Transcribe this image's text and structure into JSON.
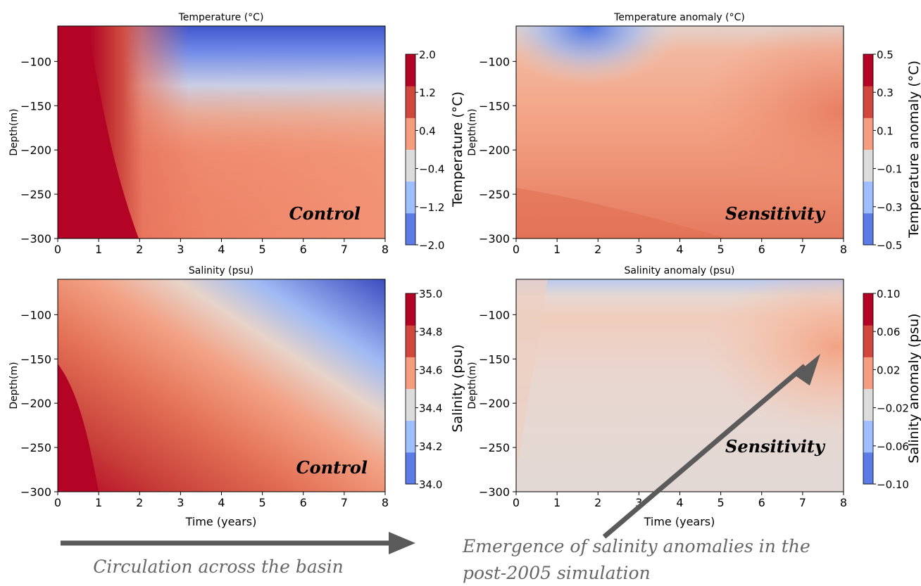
{
  "chart_data": [
    {
      "type": "heatmap",
      "title": "Temperature (°C)",
      "xlabel": "",
      "ylabel": "Depth(m)",
      "xlim": [
        0,
        8
      ],
      "ylim": [
        -300,
        -60
      ],
      "xticks": [
        "0",
        "1",
        "2",
        "3",
        "4",
        "5",
        "6",
        "7",
        "8"
      ],
      "yticks": [
        "−100",
        "−150",
        "−200",
        "−250",
        "−300"
      ],
      "annotation": "Control",
      "colorbar": {
        "label": "Temperature (°C)",
        "ticks": [
          "2.0",
          "1.2",
          "0.4",
          "−0.4",
          "−1.2",
          "−2.0"
        ],
        "range": [
          -2.0,
          2.0
        ]
      }
    },
    {
      "type": "heatmap",
      "title": "Temperature anomaly (°C)",
      "xlabel": "",
      "ylabel": "Depth(m)",
      "xlim": [
        0,
        8
      ],
      "ylim": [
        -300,
        -60
      ],
      "xticks": [
        "0",
        "1",
        "2",
        "3",
        "4",
        "5",
        "6",
        "7",
        "8"
      ],
      "yticks": [
        "−100",
        "−150",
        "−200",
        "−250",
        "−300"
      ],
      "annotation": "Sensitivity",
      "colorbar": {
        "label": "Temperature anomaly (°C)",
        "ticks": [
          "0.5",
          "0.3",
          "0.1",
          "−0.1",
          "−0.3",
          "−0.5"
        ],
        "range": [
          -0.5,
          0.5
        ]
      }
    },
    {
      "type": "heatmap",
      "title": "Salinity (psu)",
      "xlabel": "Time (years)",
      "ylabel": "Depth(m)",
      "xlim": [
        0,
        8
      ],
      "ylim": [
        -300,
        -60
      ],
      "xticks": [
        "0",
        "1",
        "2",
        "3",
        "4",
        "5",
        "6",
        "7",
        "8"
      ],
      "yticks": [
        "−100",
        "−150",
        "−200",
        "−250",
        "−300"
      ],
      "annotation": "Control",
      "colorbar": {
        "label": "Salinity (psu)",
        "ticks": [
          "35.0",
          "34.8",
          "34.6",
          "34.4",
          "34.2",
          "34.0"
        ],
        "range": [
          34.0,
          35.0
        ]
      }
    },
    {
      "type": "heatmap",
      "title": "Salinity anomaly (psu)",
      "xlabel": "Time (years)",
      "ylabel": "Depth(m)",
      "xlim": [
        0,
        8
      ],
      "ylim": [
        -300,
        -60
      ],
      "xticks": [
        "0",
        "1",
        "2",
        "3",
        "4",
        "5",
        "6",
        "7",
        "8"
      ],
      "yticks": [
        "−100",
        "−150",
        "−200",
        "−250",
        "−300"
      ],
      "annotation": "Sensitivity",
      "colorbar": {
        "label": "Salinity anomaly (psu)",
        "ticks": [
          "0.10",
          "0.06",
          "0.02",
          "−0.02",
          "−0.06",
          "−0.10"
        ],
        "range": [
          -0.1,
          0.1
        ]
      }
    }
  ],
  "captions": {
    "circulation": "Circulation across the basin",
    "emergence_line1": "Emergence of salinity anomalies in the",
    "emergence_line2": "post-2005 simulation"
  },
  "colors": {
    "colorbar_bands": [
      "#b40426",
      "#d0473d",
      "#f59d7e",
      "#dddcdc",
      "#9ebeff",
      "#5b7ce6"
    ],
    "arrow": "#5a5a5a",
    "caption_text": "#666666"
  }
}
